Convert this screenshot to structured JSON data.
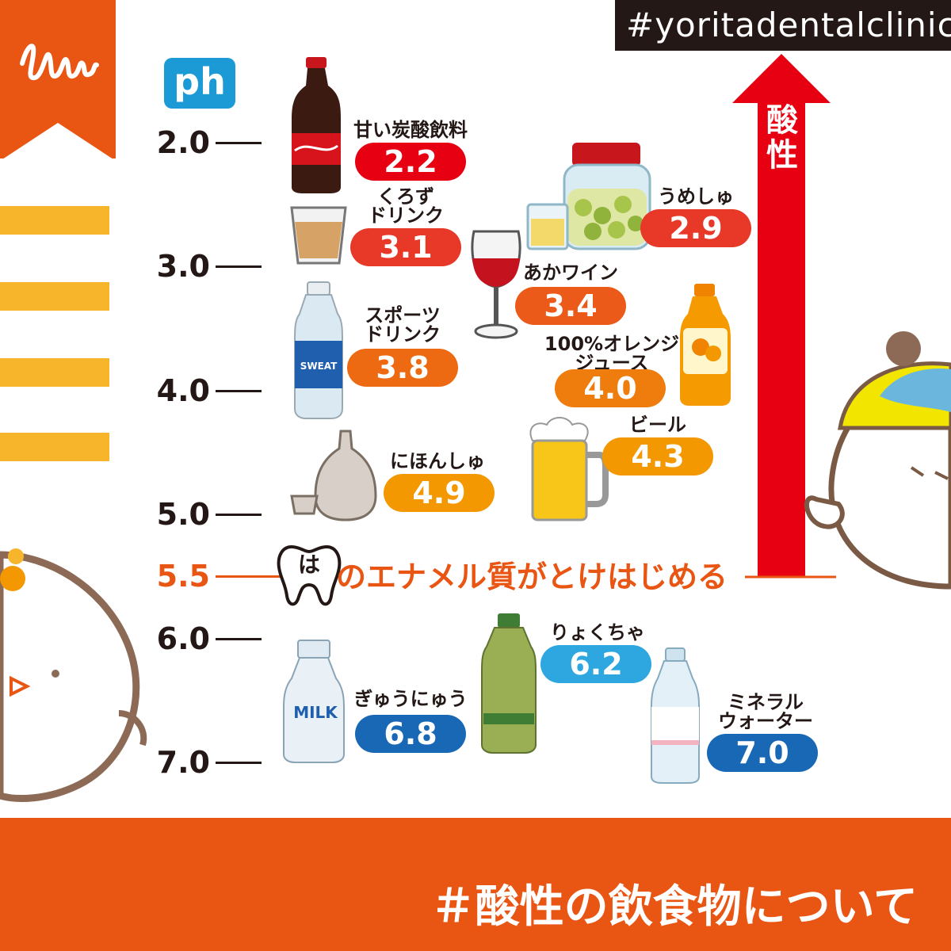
{
  "header": {
    "hashtag": "#yoritadentalclinic",
    "ph_badge": "ph"
  },
  "axis": {
    "ticks": [
      "2.0",
      "3.0",
      "4.0",
      "5.0",
      "5.5",
      "6.0",
      "7.0"
    ],
    "threshold_label": "5.5",
    "enamel_tooth_char": "は",
    "enamel_text": "のエナメル質がとけはじめる",
    "arrow_label": "酸\n性"
  },
  "chart_data": {
    "type": "scatter",
    "y_axis_label": "ph",
    "ylim": [
      2.0,
      7.0
    ],
    "y_ticks": [
      2.0,
      3.0,
      4.0,
      5.0,
      5.5,
      6.0,
      7.0
    ],
    "threshold": {
      "value": 5.5,
      "label": "のエナメル質がとけはじめる"
    },
    "arrow": {
      "direction": "up",
      "label": "酸性"
    },
    "points": [
      {
        "name": "甘い炭酸飲料",
        "value": 2.2,
        "label": "2.2"
      },
      {
        "name": "うめしゅ",
        "value": 2.9,
        "label": "2.9"
      },
      {
        "name": "くろず\nドリンク",
        "value": 3.1,
        "label": "3.1"
      },
      {
        "name": "あかワイン",
        "value": 3.4,
        "label": "3.4"
      },
      {
        "name": "スポーツ\nドリンク",
        "value": 3.8,
        "label": "3.8"
      },
      {
        "name": "100%オレンジ\nジュース",
        "value": 4.0,
        "label": "4.0"
      },
      {
        "name": "ビール",
        "value": 4.3,
        "label": "4.3"
      },
      {
        "name": "にほんしゅ",
        "value": 4.9,
        "label": "4.9"
      },
      {
        "name": "りょくちゃ",
        "value": 6.2,
        "label": "6.2"
      },
      {
        "name": "ぎゅうにゅう",
        "value": 6.8,
        "label": "6.8"
      },
      {
        "name": "ミネラル\nウォーター",
        "value": 7.0,
        "label": "7.0"
      }
    ]
  },
  "icons": [
    "cola-bottle-icon",
    "umeshu-jar-icon",
    "vinegar-glass-icon",
    "wine-glass-icon",
    "sports-drink-bottle-icon",
    "orange-juice-bottle-icon",
    "beer-mug-icon",
    "sake-bottle-icon",
    "green-tea-bottle-icon",
    "milk-bottle-icon",
    "water-bottle-icon",
    "tooth-icon",
    "character-right-icon",
    "character-left-icon",
    "logo-icon"
  ],
  "bottle_labels": {
    "sweat": "SWEAT",
    "milk": "MILK"
  },
  "colors": {
    "brand_orange": "#e95513",
    "stripe_yellow": "#f7b52c",
    "acid_red": "#e60012",
    "text_dark": "#231815",
    "ph_blue": "#1b9ad6"
  },
  "footer": {
    "title": "＃酸性の飲食物について"
  }
}
